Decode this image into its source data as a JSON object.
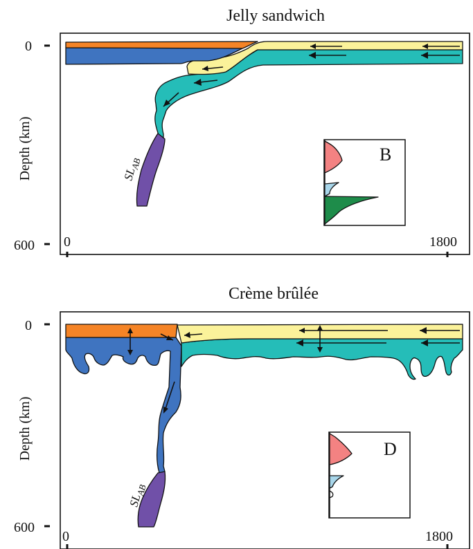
{
  "panels": [
    {
      "title": "Jelly sandwich",
      "ylabel": "Depth (km)",
      "y_ticks": [
        "0",
        "600"
      ],
      "x_ticks": [
        "0",
        "1800"
      ],
      "inset_letter": "B",
      "slab_label": "SLAB",
      "slab_subscript": "AB"
    },
    {
      "title": "Crème brûlée",
      "ylabel": "Depth (km)",
      "y_ticks": [
        "0",
        "600"
      ],
      "x_ticks": [
        "0",
        "1800"
      ],
      "inset_letter": "D",
      "slab_label": "SLAB",
      "slab_subscript": "AB"
    }
  ],
  "colors": {
    "orange_crust": "#f58426",
    "blue_mantle": "#3f74c0",
    "yellow_crust": "#fbf29a",
    "teal_mantle": "#25bdb8",
    "purple_slab": "#7050a8",
    "pink_strength": "#f38282",
    "light_blue_strength": "#a8d6ea",
    "green_strength": "#1e8c4a"
  }
}
